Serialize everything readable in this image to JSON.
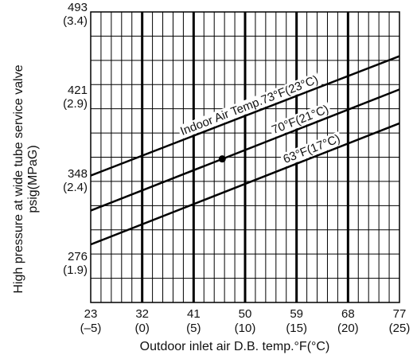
{
  "chart_data": {
    "type": "line",
    "xlabel": "Outdoor inlet air D.B. temp.°F(°C)",
    "ylabel_line1": "High pressure at wide tube service valve",
    "ylabel_line2": "psig(MPaG)",
    "xlim": [
      23,
      77
    ],
    "ylim": [
      240,
      493
    ],
    "x_ticks": [
      {
        "value": 23,
        "label": "23",
        "sub": "(–5)"
      },
      {
        "value": 32,
        "label": "32",
        "sub": "(0)"
      },
      {
        "value": 41,
        "label": "41",
        "sub": "(5)"
      },
      {
        "value": 50,
        "label": "50",
        "sub": "(10)"
      },
      {
        "value": 59,
        "label": "59",
        "sub": "(15)"
      },
      {
        "value": 68,
        "label": "68",
        "sub": "(20)"
      },
      {
        "value": 77,
        "label": "77",
        "sub": "(25)"
      }
    ],
    "y_ticks": [
      {
        "value": 493,
        "label": "493",
        "sub": "(3.4)"
      },
      {
        "value": 421,
        "label": "421",
        "sub": "(2.9)"
      },
      {
        "value": 348,
        "label": "348",
        "sub": "(2.4)"
      },
      {
        "value": 276,
        "label": "276",
        "sub": "(1.9)"
      }
    ],
    "grid": true,
    "series": [
      {
        "name": "Indoor Air Temp.73°F(23°C)",
        "x": [
          23,
          77
        ],
        "y": [
          350.5,
          454.5
        ]
      },
      {
        "name": "70°F(21°C)",
        "x": [
          23,
          77
        ],
        "y": [
          320,
          425.5
        ]
      },
      {
        "name": "63°F(17°C)",
        "x": [
          23,
          77
        ],
        "y": [
          290.5,
          396
        ]
      }
    ],
    "marker_point": {
      "x": 46,
      "y": 365
    }
  }
}
